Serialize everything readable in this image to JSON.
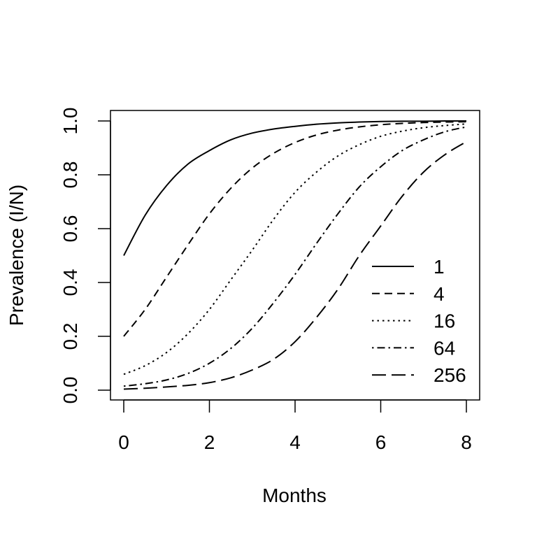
{
  "chart_data": {
    "type": "line",
    "title": "",
    "xlabel": "Months",
    "ylabel": "Prevalence (I/N)",
    "xlim": [
      0,
      8
    ],
    "ylim": [
      0,
      1
    ],
    "x_ticks": [
      0,
      2,
      4,
      6,
      8
    ],
    "y_ticks": [
      "0.0",
      "0.2",
      "0.4",
      "0.6",
      "0.8",
      "1.0"
    ],
    "grid": false,
    "legend_position": "bottom-right",
    "colors": {
      "line": "#000000",
      "axis": "#000000",
      "background": "#ffffff"
    },
    "x": [
      0,
      0.5,
      1,
      1.5,
      2,
      2.5,
      3,
      3.5,
      4,
      4.5,
      5,
      5.5,
      6,
      6.5,
      7,
      7.5,
      8
    ],
    "series": [
      {
        "name": "1",
        "dash": "solid",
        "values": [
          0.5,
          0.65,
          0.76,
          0.84,
          0.89,
          0.93,
          0.955,
          0.97,
          0.98,
          0.988,
          0.993,
          0.996,
          0.998,
          0.999,
          0.999,
          1.0,
          1.0
        ]
      },
      {
        "name": "4",
        "dash": "dashed",
        "values": [
          0.2,
          0.3,
          0.42,
          0.54,
          0.655,
          0.75,
          0.825,
          0.88,
          0.92,
          0.948,
          0.966,
          0.978,
          0.986,
          0.991,
          0.994,
          0.996,
          0.997
        ]
      },
      {
        "name": "16",
        "dash": "dotted",
        "values": [
          0.059,
          0.091,
          0.14,
          0.21,
          0.3,
          0.41,
          0.52,
          0.635,
          0.735,
          0.81,
          0.87,
          0.912,
          0.943,
          0.962,
          0.975,
          0.983,
          0.989
        ]
      },
      {
        "name": "64",
        "dash": "dotdash",
        "values": [
          0.015,
          0.024,
          0.038,
          0.062,
          0.1,
          0.155,
          0.23,
          0.325,
          0.43,
          0.545,
          0.655,
          0.755,
          0.83,
          0.89,
          0.93,
          0.96,
          0.978
        ]
      },
      {
        "name": "256",
        "dash": "longdash",
        "values": [
          0.004,
          0.007,
          0.012,
          0.018,
          0.028,
          0.046,
          0.075,
          0.115,
          0.18,
          0.27,
          0.375,
          0.5,
          0.61,
          0.72,
          0.81,
          0.875,
          0.923
        ]
      }
    ]
  }
}
